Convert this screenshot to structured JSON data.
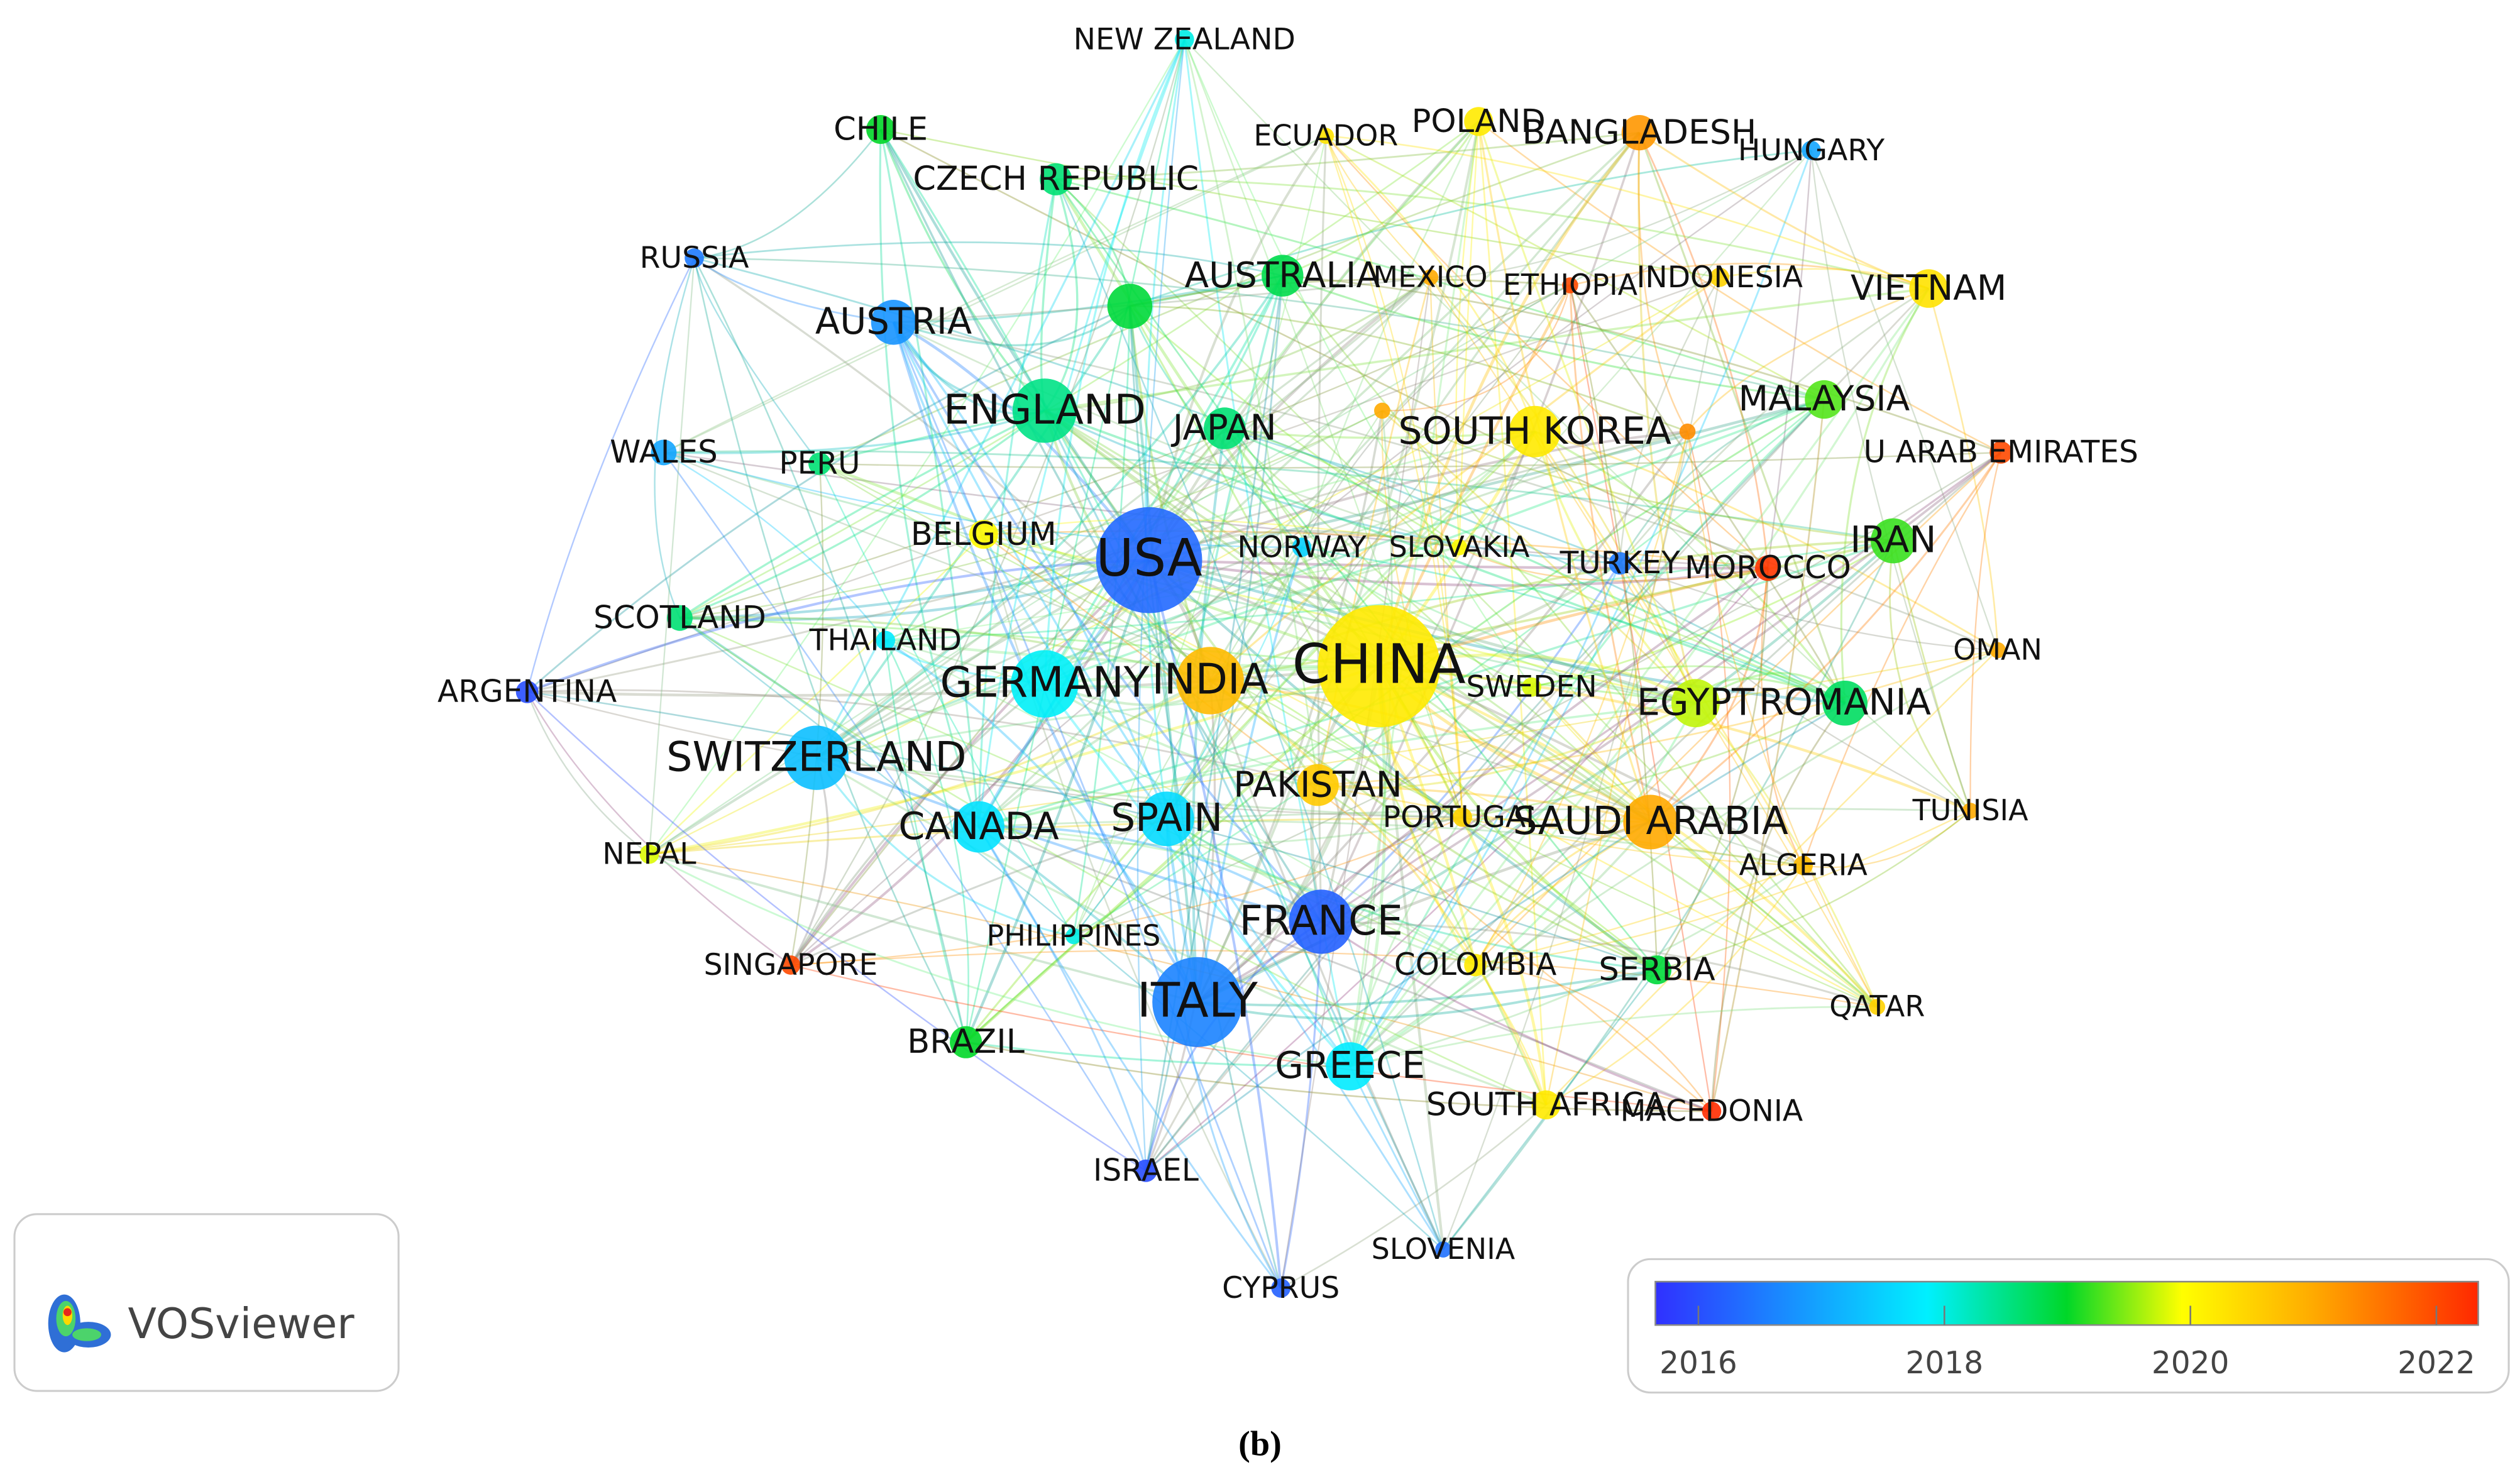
{
  "nodes": [
    {
      "label": "NEW ZEALAND",
      "year": 2018.0
    },
    {
      "label": "CHILE",
      "year": 2019.0
    },
    {
      "label": "ECUADOR",
      "year": 2020.3
    },
    {
      "label": "POLAND",
      "year": 2020.2
    },
    {
      "label": "BANGLADESH",
      "year": 2021.2
    },
    {
      "label": "HUNGARY",
      "year": 2017.0
    },
    {
      "label": "CZECH REPUBLIC",
      "year": 2018.6
    },
    {
      "label": "RUSSIA",
      "year": 2016.5
    },
    {
      "label": "AUSTRALIA",
      "year": 2018.8
    },
    {
      "label": "MEXICO",
      "year": 2021.0
    },
    {
      "label": "ETHIOPIA",
      "year": 2022.0
    },
    {
      "label": "INDONESIA",
      "year": 2020.5
    },
    {
      "label": "VIETNAM",
      "year": 2020.3
    },
    {
      "label": "AUSTRIA",
      "year": 2016.8
    },
    {
      "label": null,
      "year": 2018.9
    },
    {
      "label": "ENGLAND",
      "year": 2018.5
    },
    {
      "label": "JAPAN",
      "year": 2018.6
    },
    {
      "label": "MALAYSIA",
      "year": 2019.3
    },
    {
      "label": "SOUTH KOREA",
      "year": 2020.2
    },
    {
      "label": null,
      "year": 2021.0
    },
    {
      "label": null,
      "year": 2021.3
    },
    {
      "label": "WALES",
      "year": 2017.0
    },
    {
      "label": "PERU",
      "year": 2018.6
    },
    {
      "label": "U ARAB EMIRATES",
      "year": 2022.0
    },
    {
      "label": "BELGIUM",
      "year": 2020.0
    },
    {
      "label": "USA",
      "year": 2016.3
    },
    {
      "label": "NORWAY",
      "year": 2017.5
    },
    {
      "label": "SLOVAKIA",
      "year": 2020.0
    },
    {
      "label": "TURKEY",
      "year": 2016.5
    },
    {
      "label": "MOROCCO",
      "year": 2022.2
    },
    {
      "label": "IRAN",
      "year": 2019.2
    },
    {
      "label": "SCOTLAND",
      "year": 2018.6
    },
    {
      "label": "THAILAND",
      "year": 2017.8
    },
    {
      "label": "ARGENTINA",
      "year": 2016.0
    },
    {
      "label": "CHINA",
      "year": 2020.2
    },
    {
      "label": "GERMANY",
      "year": 2017.9
    },
    {
      "label": "INDIA",
      "year": 2020.8
    },
    {
      "label": "SWEDEN",
      "year": 2019.8
    },
    {
      "label": "OMAN",
      "year": 2021.0
    },
    {
      "label": "EGYPT",
      "year": 2019.7
    },
    {
      "label": "ROMANIA",
      "year": 2018.7
    },
    {
      "label": "SWITZERLAND",
      "year": 2017.3
    },
    {
      "label": "PAKISTAN",
      "year": 2020.6
    },
    {
      "label": "TUNISIA",
      "year": 2021.0
    },
    {
      "label": "CANADA",
      "year": 2017.7
    },
    {
      "label": "SPAIN",
      "year": 2017.6
    },
    {
      "label": "PORTUGAL",
      "year": 2020.5
    },
    {
      "label": "SAUDI ARABIA",
      "year": 2021.0
    },
    {
      "label": "NEPAL",
      "year": 2019.8
    },
    {
      "label": "ALGERIA",
      "year": 2020.8
    },
    {
      "label": "FRANCE",
      "year": 2016.2
    },
    {
      "label": "PHILIPPINES",
      "year": 2018.0
    },
    {
      "label": "SINGAPORE",
      "year": 2022.0
    },
    {
      "label": "COLOMBIA",
      "year": 2020.2
    },
    {
      "label": "SERBIA",
      "year": 2018.9
    },
    {
      "label": "ITALY",
      "year": 2016.6
    },
    {
      "label": "QATAR",
      "year": 2020.5
    },
    {
      "label": "BRAZIL",
      "year": 2019.0
    },
    {
      "label": "GREECE",
      "year": 2017.8
    },
    {
      "label": "SOUTH AFRICA",
      "year": 2020.2
    },
    {
      "label": "MACEDONIA",
      "year": 2022.3
    },
    {
      "label": "ISRAEL",
      "year": 2016.0
    },
    {
      "label": "SLOVENIA",
      "year": 2016.4
    },
    {
      "label": "CYPRUS",
      "year": 2016.2
    }
  ],
  "color_scale": {
    "range": [
      2015.65,
      2022.34
    ],
    "ticks": [
      2016,
      2018,
      2020,
      2022
    ]
  },
  "logo": "VOSviewer",
  "caption": "(b)"
}
